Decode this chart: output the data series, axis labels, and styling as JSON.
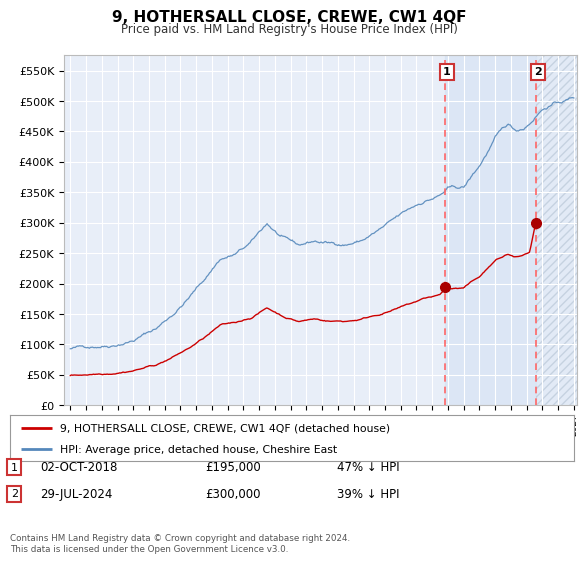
{
  "title": "9, HOTHERSALL CLOSE, CREWE, CW1 4QF",
  "subtitle": "Price paid vs. HM Land Registry's House Price Index (HPI)",
  "title_fontsize": 11,
  "subtitle_fontsize": 9,
  "ylim": [
    0,
    575000
  ],
  "yticks": [
    0,
    50000,
    100000,
    150000,
    200000,
    250000,
    300000,
    350000,
    400000,
    450000,
    500000,
    550000
  ],
  "background_color": "#ffffff",
  "plot_bg_color": "#e8eef8",
  "grid_color": "#ffffff",
  "hpi_line_color": "#5588bb",
  "price_line_color": "#cc0000",
  "vline_color": "#ff6666",
  "marker_color": "#aa0000",
  "sale1_year": 2018.79,
  "sale1_price": 195000,
  "sale2_year": 2024.57,
  "sale2_price": 300000,
  "legend_label1": "9, HOTHERSALL CLOSE, CREWE, CW1 4QF (detached house)",
  "legend_label2": "HPI: Average price, detached house, Cheshire East",
  "footer": "Contains HM Land Registry data © Crown copyright and database right 2024.\nThis data is licensed under the Open Government Licence v3.0.",
  "xstart": 1995.0,
  "xend": 2027.0
}
